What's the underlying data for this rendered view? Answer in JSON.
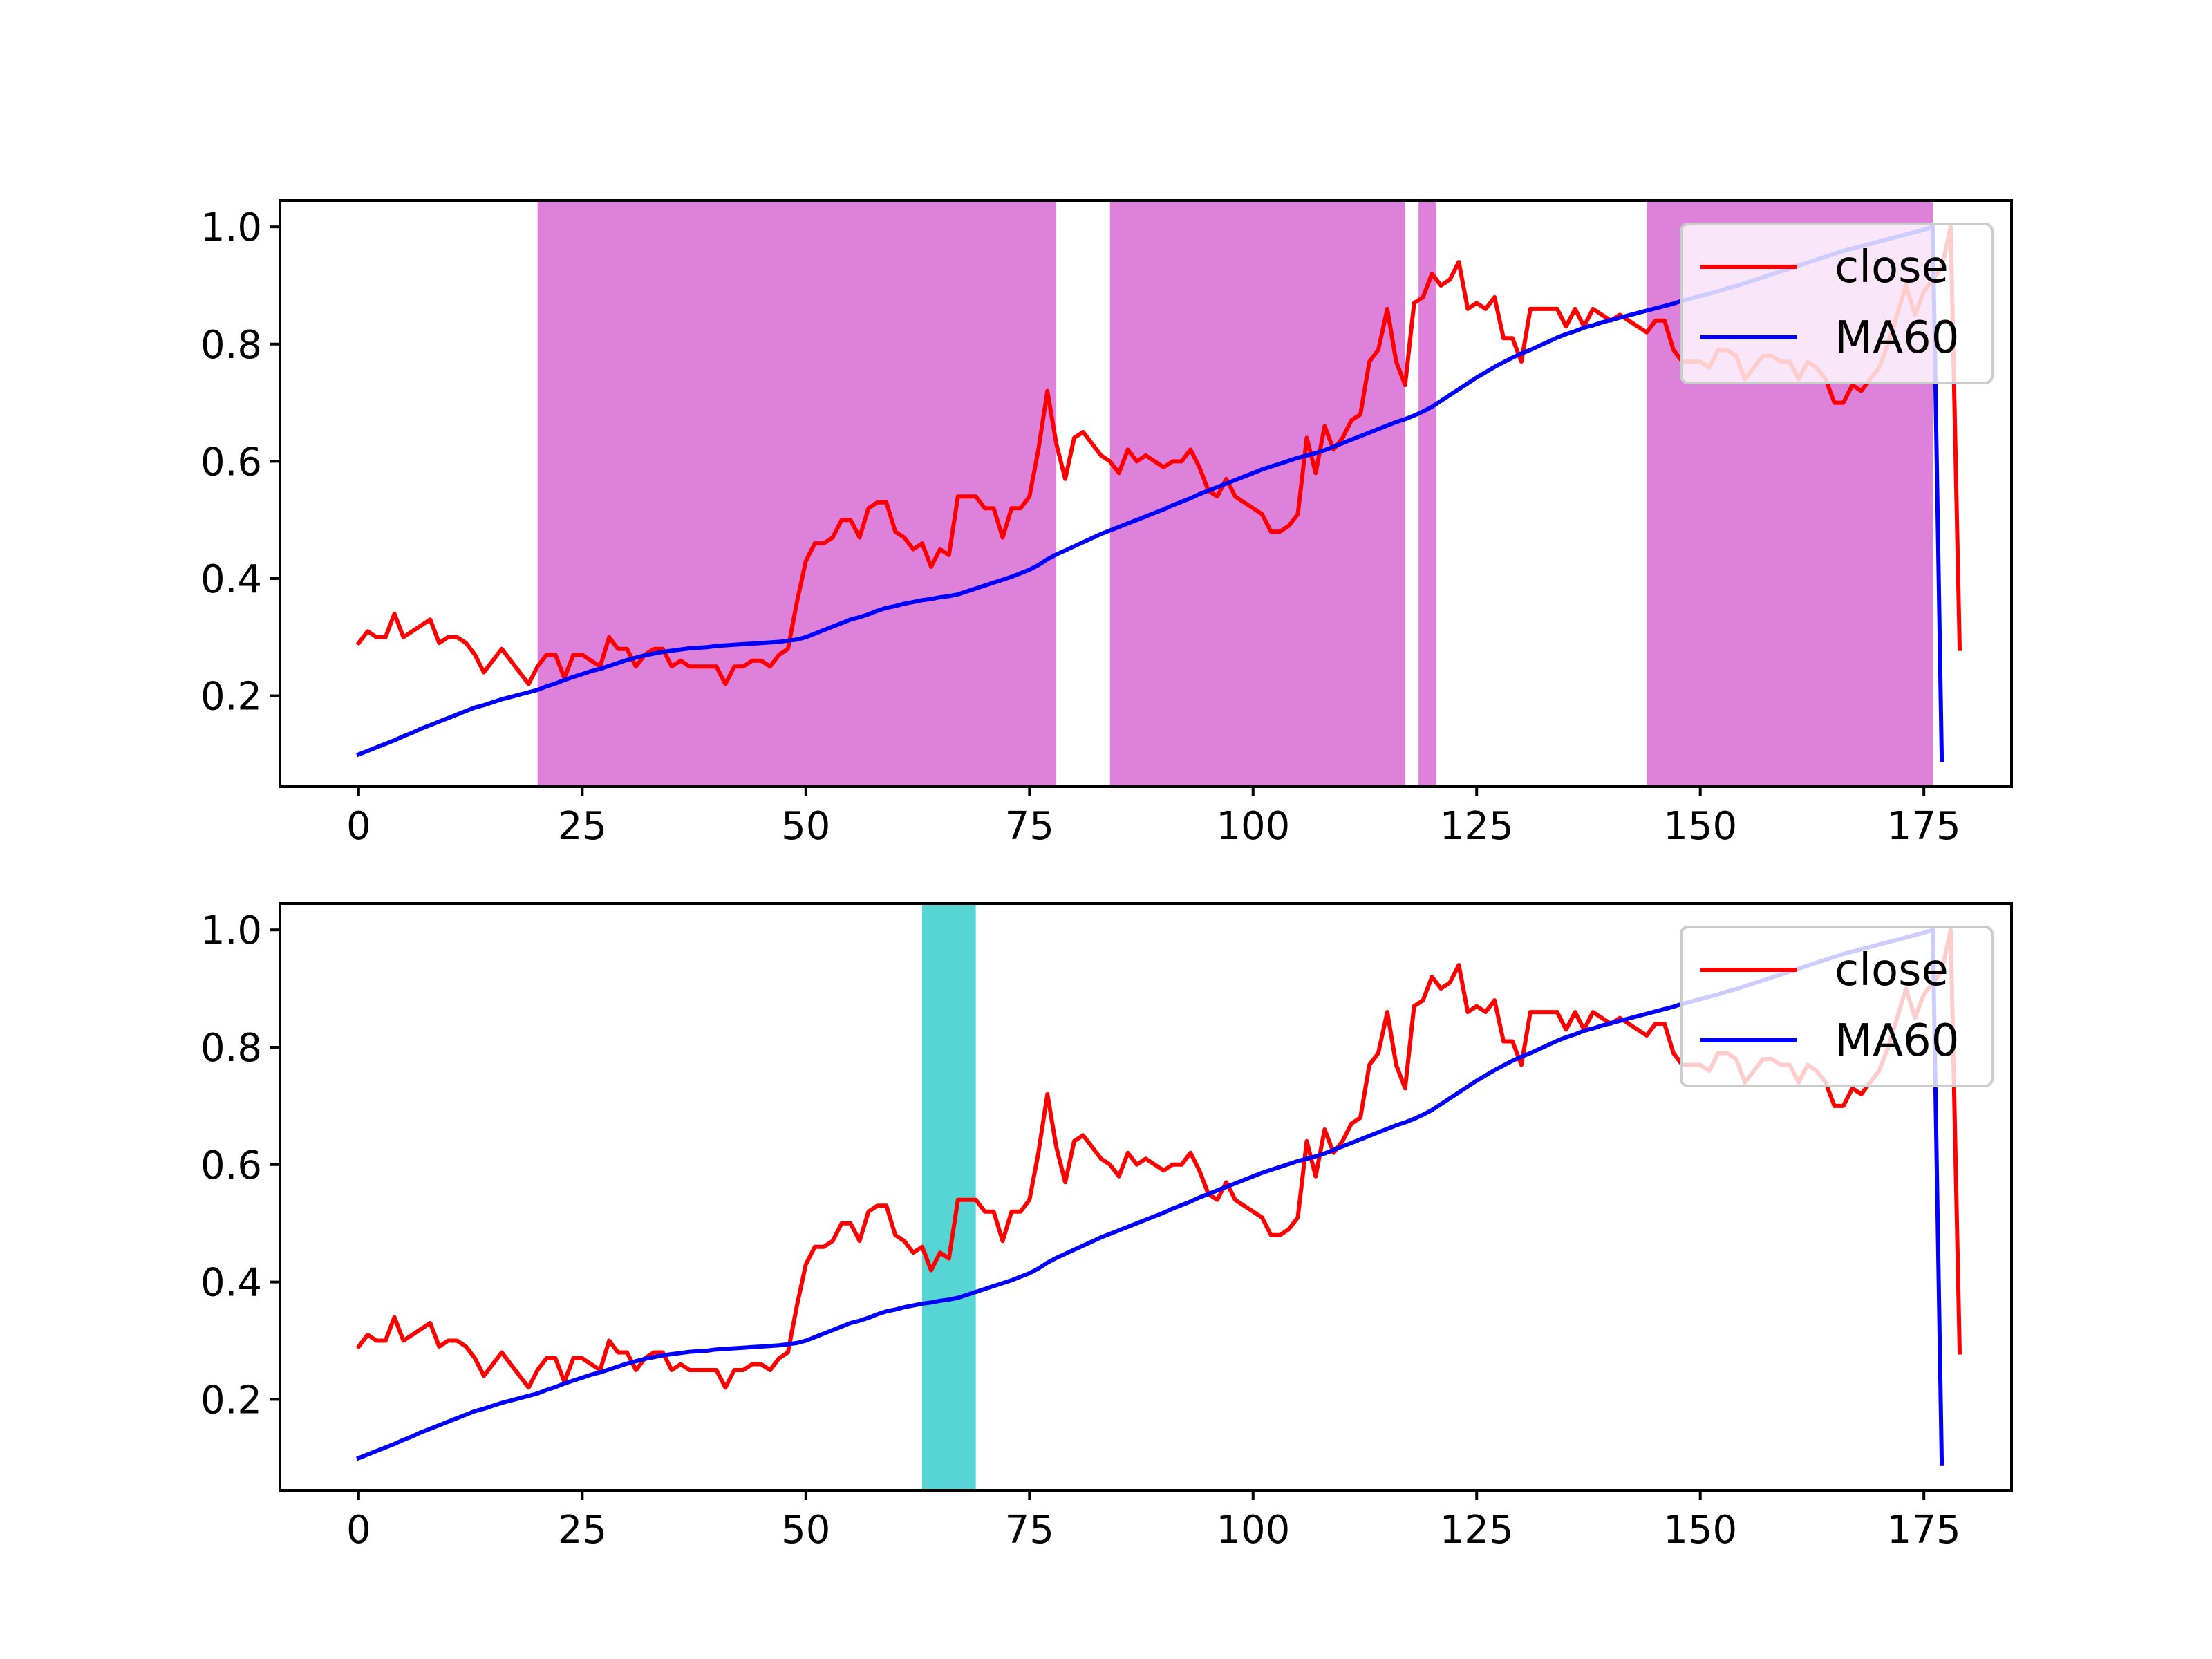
{
  "chart_data": [
    {
      "type": "line",
      "xlim": [
        -8.8,
        184.8
      ],
      "ylim": [
        0.045,
        1.045
      ],
      "xticks": [
        "0",
        "25",
        "50",
        "75",
        "100",
        "125",
        "150",
        "175"
      ],
      "yticks": [
        "0.2",
        "0.4",
        "0.6",
        "0.8",
        "1.0"
      ],
      "legend_position": "top-right",
      "shaded_spans": [
        [
          20,
          78
        ],
        [
          84,
          117
        ],
        [
          118.5,
          120.5
        ],
        [
          144,
          176
        ]
      ],
      "shade_color": "#DA70D6",
      "grid": false,
      "series": [
        {
          "name": "close",
          "color": "#FF0000",
          "x_start": 0,
          "values": [
            0.29,
            0.31,
            0.3,
            0.3,
            0.34,
            0.3,
            0.31,
            0.32,
            0.33,
            0.29,
            0.3,
            0.3,
            0.29,
            0.27,
            0.24,
            0.26,
            0.28,
            0.26,
            0.24,
            0.22,
            0.25,
            0.27,
            0.27,
            0.23,
            0.27,
            0.27,
            0.26,
            0.25,
            0.3,
            0.28,
            0.28,
            0.25,
            0.27,
            0.28,
            0.28,
            0.25,
            0.26,
            0.25,
            0.25,
            0.25,
            0.25,
            0.22,
            0.25,
            0.25,
            0.26,
            0.26,
            0.25,
            0.27,
            0.28,
            0.36,
            0.43,
            0.46,
            0.46,
            0.47,
            0.5,
            0.5,
            0.47,
            0.52,
            0.53,
            0.53,
            0.48,
            0.47,
            0.45,
            0.46,
            0.42,
            0.45,
            0.44,
            0.54,
            0.54,
            0.54,
            0.52,
            0.52,
            0.47,
            0.52,
            0.52,
            0.54,
            0.62,
            0.72,
            0.63,
            0.57,
            0.64,
            0.65,
            0.63,
            0.61,
            0.6,
            0.58,
            0.62,
            0.6,
            0.61,
            0.6,
            0.59,
            0.6,
            0.6,
            0.62,
            0.59,
            0.55,
            0.54,
            0.57,
            0.54,
            0.53,
            0.52,
            0.51,
            0.48,
            0.48,
            0.49,
            0.51,
            0.64,
            0.58,
            0.66,
            0.62,
            0.64,
            0.67,
            0.68,
            0.77,
            0.79,
            0.86,
            0.77,
            0.73,
            0.87,
            0.88,
            0.92,
            0.9,
            0.91,
            0.94,
            0.86,
            0.87,
            0.86,
            0.88,
            0.81,
            0.81,
            0.77,
            0.86,
            0.86,
            0.86,
            0.86,
            0.83,
            0.86,
            0.83,
            0.86,
            0.85,
            0.84,
            0.85,
            0.84,
            0.83,
            0.82,
            0.84,
            0.84,
            0.79,
            0.77,
            0.77,
            0.77,
            0.76,
            0.79,
            0.79,
            0.78,
            0.74,
            0.76,
            0.78,
            0.78,
            0.77,
            0.77,
            0.74,
            0.77,
            0.76,
            0.74,
            0.7,
            0.7,
            0.73,
            0.72,
            0.74,
            0.76,
            0.8,
            0.85,
            0.9,
            0.85,
            0.89,
            0.91,
            0.93,
            1.0,
            0.28
          ]
        },
        {
          "name": "MA60",
          "color": "#0000FF",
          "x_start": 0,
          "values": [
            0.1,
            0.106,
            0.112,
            0.118,
            0.124,
            0.131,
            0.137,
            0.144,
            0.15,
            0.156,
            0.162,
            0.168,
            0.174,
            0.18,
            0.184,
            0.189,
            0.194,
            0.198,
            0.202,
            0.206,
            0.21,
            0.216,
            0.221,
            0.227,
            0.232,
            0.237,
            0.242,
            0.246,
            0.251,
            0.256,
            0.261,
            0.265,
            0.269,
            0.272,
            0.275,
            0.277,
            0.279,
            0.281,
            0.282,
            0.283,
            0.285,
            0.286,
            0.287,
            0.288,
            0.289,
            0.29,
            0.291,
            0.292,
            0.294,
            0.296,
            0.3,
            0.306,
            0.312,
            0.318,
            0.324,
            0.33,
            0.334,
            0.339,
            0.345,
            0.35,
            0.353,
            0.357,
            0.36,
            0.363,
            0.365,
            0.368,
            0.37,
            0.373,
            0.378,
            0.383,
            0.388,
            0.393,
            0.398,
            0.403,
            0.409,
            0.415,
            0.423,
            0.433,
            0.441,
            0.448,
            0.455,
            0.462,
            0.469,
            0.476,
            0.482,
            0.488,
            0.494,
            0.5,
            0.506,
            0.512,
            0.518,
            0.525,
            0.531,
            0.537,
            0.544,
            0.55,
            0.556,
            0.562,
            0.568,
            0.574,
            0.58,
            0.586,
            0.591,
            0.596,
            0.601,
            0.606,
            0.61,
            0.614,
            0.619,
            0.625,
            0.631,
            0.637,
            0.643,
            0.649,
            0.655,
            0.661,
            0.667,
            0.672,
            0.678,
            0.685,
            0.693,
            0.703,
            0.713,
            0.723,
            0.733,
            0.743,
            0.752,
            0.761,
            0.769,
            0.777,
            0.784,
            0.79,
            0.797,
            0.804,
            0.811,
            0.817,
            0.822,
            0.828,
            0.832,
            0.837,
            0.841,
            0.845,
            0.849,
            0.853,
            0.857,
            0.861,
            0.865,
            0.869,
            0.874,
            0.878,
            0.882,
            0.886,
            0.89,
            0.895,
            0.899,
            0.904,
            0.909,
            0.914,
            0.919,
            0.924,
            0.929,
            0.934,
            0.939,
            0.944,
            0.949,
            0.954,
            0.959,
            0.963,
            0.967,
            0.971,
            0.975,
            0.979,
            0.983,
            0.987,
            0.991,
            0.995,
            1.0,
            0.09
          ]
        }
      ]
    },
    {
      "type": "line",
      "xlim": [
        -8.8,
        184.8
      ],
      "ylim": [
        0.045,
        1.045
      ],
      "xticks": [
        "0",
        "25",
        "50",
        "75",
        "100",
        "125",
        "150",
        "175"
      ],
      "yticks": [
        "0.2",
        "0.4",
        "0.6",
        "0.8",
        "1.0"
      ],
      "legend_position": "top-right",
      "shaded_spans": [
        [
          63,
          69
        ]
      ],
      "shade_color": "#40CFCF",
      "grid": false,
      "series": [
        {
          "name": "close",
          "color": "#FF0000",
          "x_start": 0,
          "values": [
            0.29,
            0.31,
            0.3,
            0.3,
            0.34,
            0.3,
            0.31,
            0.32,
            0.33,
            0.29,
            0.3,
            0.3,
            0.29,
            0.27,
            0.24,
            0.26,
            0.28,
            0.26,
            0.24,
            0.22,
            0.25,
            0.27,
            0.27,
            0.23,
            0.27,
            0.27,
            0.26,
            0.25,
            0.3,
            0.28,
            0.28,
            0.25,
            0.27,
            0.28,
            0.28,
            0.25,
            0.26,
            0.25,
            0.25,
            0.25,
            0.25,
            0.22,
            0.25,
            0.25,
            0.26,
            0.26,
            0.25,
            0.27,
            0.28,
            0.36,
            0.43,
            0.46,
            0.46,
            0.47,
            0.5,
            0.5,
            0.47,
            0.52,
            0.53,
            0.53,
            0.48,
            0.47,
            0.45,
            0.46,
            0.42,
            0.45,
            0.44,
            0.54,
            0.54,
            0.54,
            0.52,
            0.52,
            0.47,
            0.52,
            0.52,
            0.54,
            0.62,
            0.72,
            0.63,
            0.57,
            0.64,
            0.65,
            0.63,
            0.61,
            0.6,
            0.58,
            0.62,
            0.6,
            0.61,
            0.6,
            0.59,
            0.6,
            0.6,
            0.62,
            0.59,
            0.55,
            0.54,
            0.57,
            0.54,
            0.53,
            0.52,
            0.51,
            0.48,
            0.48,
            0.49,
            0.51,
            0.64,
            0.58,
            0.66,
            0.62,
            0.64,
            0.67,
            0.68,
            0.77,
            0.79,
            0.86,
            0.77,
            0.73,
            0.87,
            0.88,
            0.92,
            0.9,
            0.91,
            0.94,
            0.86,
            0.87,
            0.86,
            0.88,
            0.81,
            0.81,
            0.77,
            0.86,
            0.86,
            0.86,
            0.86,
            0.83,
            0.86,
            0.83,
            0.86,
            0.85,
            0.84,
            0.85,
            0.84,
            0.83,
            0.82,
            0.84,
            0.84,
            0.79,
            0.77,
            0.77,
            0.77,
            0.76,
            0.79,
            0.79,
            0.78,
            0.74,
            0.76,
            0.78,
            0.78,
            0.77,
            0.77,
            0.74,
            0.77,
            0.76,
            0.74,
            0.7,
            0.7,
            0.73,
            0.72,
            0.74,
            0.76,
            0.8,
            0.85,
            0.9,
            0.85,
            0.89,
            0.91,
            0.93,
            1.0,
            0.28
          ]
        },
        {
          "name": "MA60",
          "color": "#0000FF",
          "x_start": 0,
          "values": [
            0.1,
            0.106,
            0.112,
            0.118,
            0.124,
            0.131,
            0.137,
            0.144,
            0.15,
            0.156,
            0.162,
            0.168,
            0.174,
            0.18,
            0.184,
            0.189,
            0.194,
            0.198,
            0.202,
            0.206,
            0.21,
            0.216,
            0.221,
            0.227,
            0.232,
            0.237,
            0.242,
            0.246,
            0.251,
            0.256,
            0.261,
            0.265,
            0.269,
            0.272,
            0.275,
            0.277,
            0.279,
            0.281,
            0.282,
            0.283,
            0.285,
            0.286,
            0.287,
            0.288,
            0.289,
            0.29,
            0.291,
            0.292,
            0.294,
            0.296,
            0.3,
            0.306,
            0.312,
            0.318,
            0.324,
            0.33,
            0.334,
            0.339,
            0.345,
            0.35,
            0.353,
            0.357,
            0.36,
            0.363,
            0.365,
            0.368,
            0.37,
            0.373,
            0.378,
            0.383,
            0.388,
            0.393,
            0.398,
            0.403,
            0.409,
            0.415,
            0.423,
            0.433,
            0.441,
            0.448,
            0.455,
            0.462,
            0.469,
            0.476,
            0.482,
            0.488,
            0.494,
            0.5,
            0.506,
            0.512,
            0.518,
            0.525,
            0.531,
            0.537,
            0.544,
            0.55,
            0.556,
            0.562,
            0.568,
            0.574,
            0.58,
            0.586,
            0.591,
            0.596,
            0.601,
            0.606,
            0.61,
            0.614,
            0.619,
            0.625,
            0.631,
            0.637,
            0.643,
            0.649,
            0.655,
            0.661,
            0.667,
            0.672,
            0.678,
            0.685,
            0.693,
            0.703,
            0.713,
            0.723,
            0.733,
            0.743,
            0.752,
            0.761,
            0.769,
            0.777,
            0.784,
            0.79,
            0.797,
            0.804,
            0.811,
            0.817,
            0.822,
            0.828,
            0.832,
            0.837,
            0.841,
            0.845,
            0.849,
            0.853,
            0.857,
            0.861,
            0.865,
            0.869,
            0.874,
            0.878,
            0.882,
            0.886,
            0.89,
            0.895,
            0.899,
            0.904,
            0.909,
            0.914,
            0.919,
            0.924,
            0.929,
            0.934,
            0.939,
            0.944,
            0.949,
            0.954,
            0.959,
            0.963,
            0.967,
            0.971,
            0.975,
            0.979,
            0.983,
            0.987,
            0.991,
            0.995,
            1.0,
            0.09
          ]
        }
      ]
    }
  ]
}
